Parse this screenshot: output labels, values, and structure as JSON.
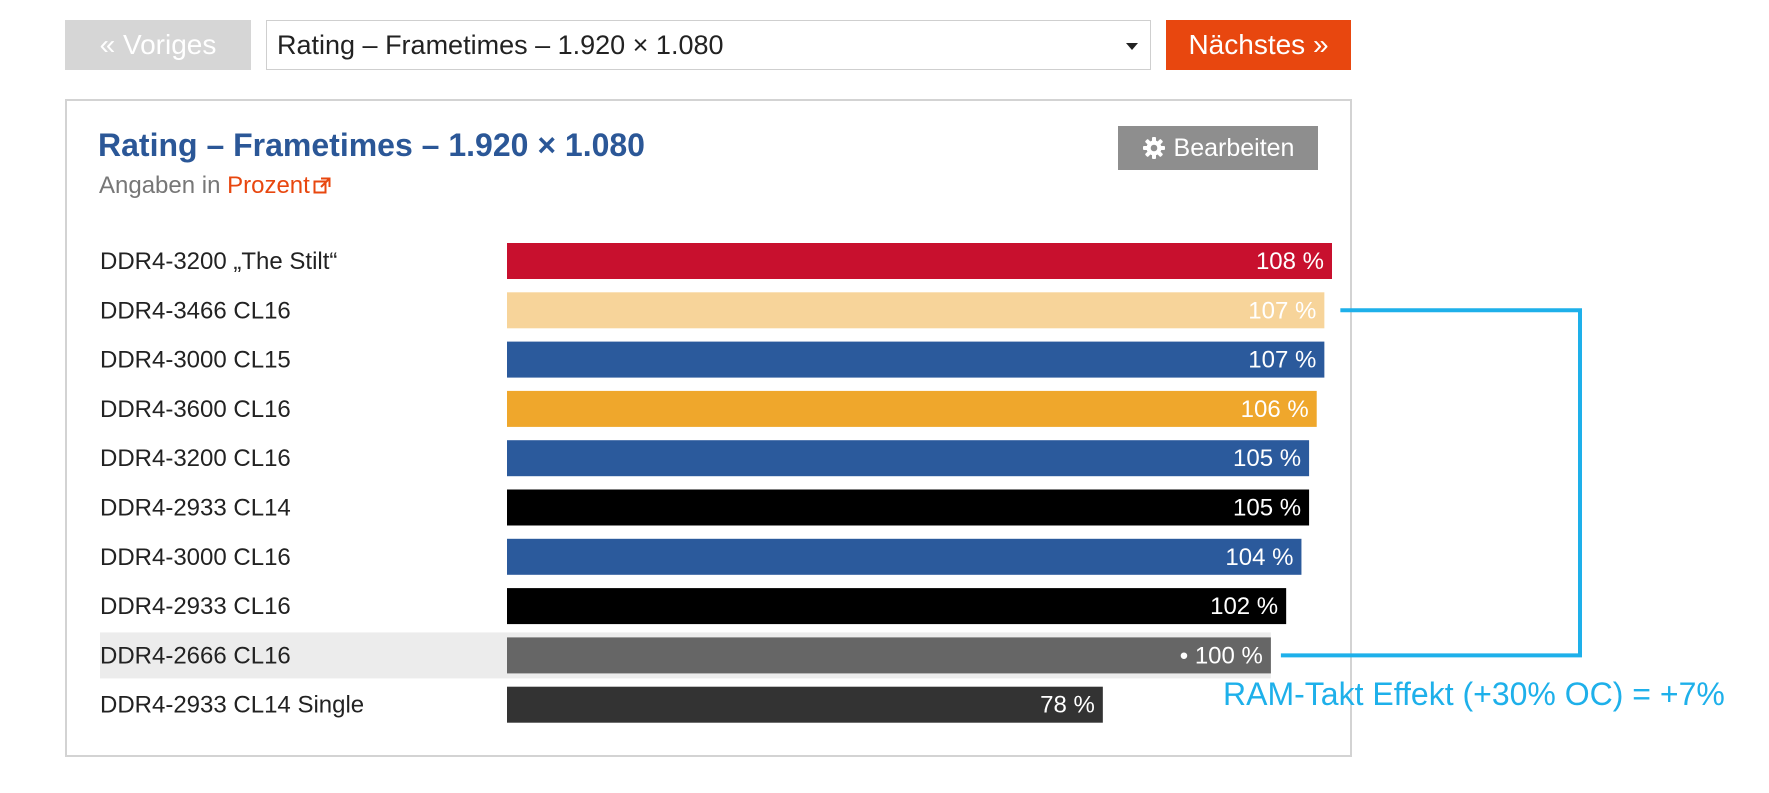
{
  "nav": {
    "prev_label": "« Voriges",
    "selected": "Rating – Frametimes – 1.920 × 1.080",
    "next_label": "Nächstes »"
  },
  "header": {
    "title": "Rating – Frametimes – 1.920 × 1.080",
    "subtitle_prefix": "Angaben in ",
    "subtitle_link": "Prozent",
    "edit_label": "Bearbeiten"
  },
  "annotation": "RAM-Takt Effekt (+30% OC) = +7%",
  "colors": {
    "red": "#c8102e",
    "peach": "#f7d49a",
    "blue": "#2b5a9c",
    "orange": "#efa72c",
    "black": "#000000",
    "gray": "#666666",
    "dark": "#333333",
    "accent": "#e8470f",
    "annotation": "#1eb0ea"
  },
  "chart_data": {
    "type": "bar",
    "orientation": "horizontal",
    "unit": "%",
    "categories": [
      "DDR4-3200 „The Stilt“",
      "DDR4-3466 CL16",
      "DDR4-3000 CL15",
      "DDR4-3600 CL16",
      "DDR4-3200 CL16",
      "DDR4-2933 CL14",
      "DDR4-3000 CL16",
      "DDR4-2933 CL16",
      "DDR4-2666 CL16",
      "DDR4-2933 CL14 Single"
    ],
    "values": [
      108,
      107,
      107,
      106,
      105,
      105,
      104,
      102,
      100,
      78
    ],
    "value_labels": [
      "108 %",
      "107 %",
      "107 %",
      "106 %",
      "105 %",
      "105 %",
      "104 %",
      "102 %",
      "• 100 %",
      "78 %"
    ],
    "bar_colors": [
      "red",
      "peach",
      "blue",
      "orange",
      "blue",
      "black",
      "blue",
      "black",
      "gray",
      "dark"
    ],
    "highlighted": "DDR4-2666 CL16",
    "xlim": [
      0,
      108
    ]
  }
}
